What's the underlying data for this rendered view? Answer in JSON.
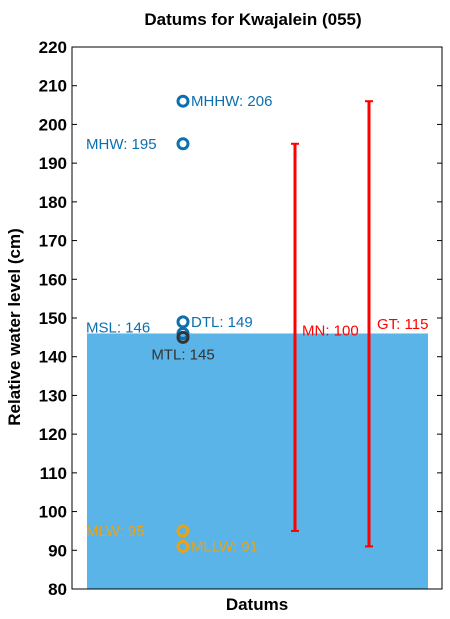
{
  "chart_data": {
    "type": "scatter",
    "title": "Datums for Kwajalein (055)",
    "xlabel": "Datums",
    "ylabel": "Relative water level (cm)",
    "ylim": [
      80,
      220
    ],
    "yticks": [
      80,
      90,
      100,
      110,
      120,
      130,
      140,
      150,
      160,
      170,
      180,
      190,
      200,
      210,
      220
    ],
    "grid": false,
    "fill": {
      "name": "MSL",
      "value": 146,
      "color": "#5ab4e8"
    },
    "datums": [
      {
        "name": "MHHW",
        "value": 206,
        "label": "MHHW: 206",
        "color": "#0b6fb0",
        "label_side": "right"
      },
      {
        "name": "MHW",
        "value": 195,
        "label": "MHW: 195",
        "color": "#0b6fb0",
        "label_side": "left"
      },
      {
        "name": "DTL",
        "value": 149,
        "label": "DTL: 149",
        "color": "#0b6fb0",
        "label_side": "right"
      },
      {
        "name": "MSL",
        "value": 146,
        "label": "MSL: 146",
        "color": "#0b6fb0",
        "label_side": "left"
      },
      {
        "name": "MTL",
        "value": 145,
        "label": "MTL: 145",
        "color": "#333333",
        "label_side": "below"
      },
      {
        "name": "MLW",
        "value": 95,
        "label": "MLW: 95",
        "color": "#e8a317",
        "label_side": "left"
      },
      {
        "name": "MLLW",
        "value": 91,
        "label": "MLLW: 91",
        "color": "#e8a317",
        "label_side": "right"
      }
    ],
    "ranges": [
      {
        "name": "MN",
        "low": 95,
        "high": 195,
        "value": 100,
        "label": "MN: 100",
        "color": "#ff0000"
      },
      {
        "name": "GT",
        "low": 91,
        "high": 206,
        "value": 115,
        "label": "GT: 115",
        "color": "#ff0000"
      }
    ]
  }
}
